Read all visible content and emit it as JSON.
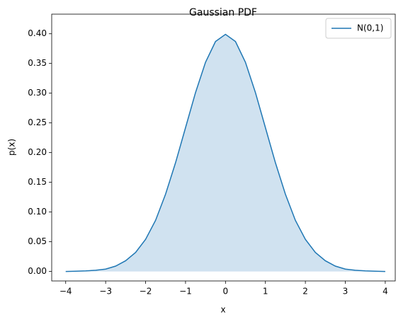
{
  "chart_data": {
    "type": "line",
    "title": "Gaussian PDF",
    "xlabel": "x",
    "ylabel": "p(x)",
    "x": [
      -4,
      -3.75,
      -3.5,
      -3.25,
      -3,
      -2.75,
      -2.5,
      -2.25,
      -2,
      -1.75,
      -1.5,
      -1.25,
      -1,
      -0.75,
      -0.5,
      -0.25,
      0,
      0.25,
      0.5,
      0.75,
      1,
      1.25,
      1.5,
      1.75,
      2,
      2.25,
      2.5,
      2.75,
      3,
      3.25,
      3.5,
      3.75,
      4
    ],
    "series": [
      {
        "name": "N(0,1)",
        "color": "#1f77b4",
        "fill": true,
        "fill_color": "#d0e2f0",
        "values": [
          0.0,
          0.0004,
          0.0009,
          0.002,
          0.004,
          0.009,
          0.018,
          0.032,
          0.054,
          0.086,
          0.13,
          0.183,
          0.242,
          0.301,
          0.352,
          0.387,
          0.399,
          0.387,
          0.352,
          0.301,
          0.242,
          0.183,
          0.13,
          0.086,
          0.054,
          0.032,
          0.018,
          0.009,
          0.004,
          0.002,
          0.0009,
          0.0004,
          0.0
        ]
      }
    ],
    "xlim": [
      -4.35,
      4.25
    ],
    "xticks": [
      {
        "value": -4,
        "label": "−4"
      },
      {
        "value": -3,
        "label": "−3"
      },
      {
        "value": -2,
        "label": "−2"
      },
      {
        "value": -1,
        "label": "−1"
      },
      0,
      1,
      2,
      3,
      4
    ],
    "ylim": [
      -0.016,
      0.433
    ],
    "yticks": [
      {
        "value": 0,
        "label": "0.00"
      },
      {
        "value": 0.05,
        "label": "0.05"
      },
      {
        "value": 0.1,
        "label": "0.10"
      },
      {
        "value": 0.15,
        "label": "0.15"
      },
      {
        "value": 0.2,
        "label": "0.20"
      },
      {
        "value": 0.25,
        "label": "0.25"
      },
      {
        "value": 0.3,
        "label": "0.30"
      },
      {
        "value": 0.35,
        "label": "0.35"
      },
      {
        "value": 0.4,
        "label": "0.40"
      }
    ],
    "grid": false,
    "legend": "upper right"
  }
}
